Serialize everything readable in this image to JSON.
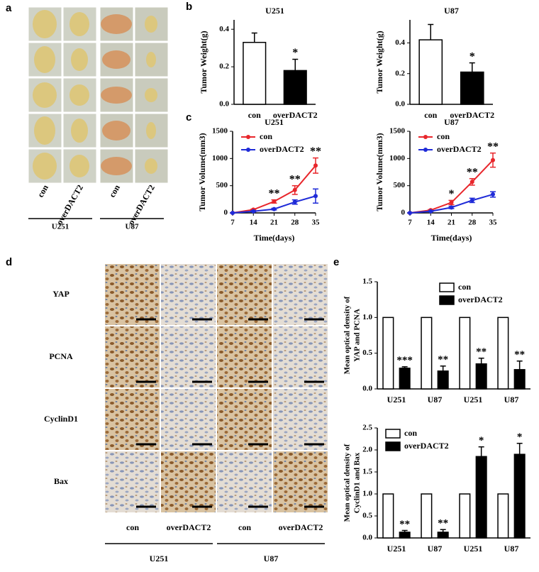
{
  "panel_labels": [
    "a",
    "b",
    "c",
    "d",
    "e"
  ],
  "tumor_photos": {
    "column_labels": [
      "con",
      "overDACT2",
      "con",
      "overDACT2"
    ],
    "group_labels": [
      "U251",
      "U87"
    ]
  },
  "ihc": {
    "row_labels": [
      "YAP",
      "PCNA",
      "CyclinD1",
      "Bax"
    ],
    "column_labels": [
      "con",
      "overDACT2",
      "con",
      "overDACT2"
    ],
    "group_labels": [
      "U251",
      "U87"
    ]
  },
  "chart_data": [
    {
      "type": "bar",
      "title": "U251",
      "ylabel": "Tumor Weight(g)",
      "categories": [
        "con",
        "overDACT2"
      ],
      "values": [
        0.33,
        0.18
      ],
      "errors": [
        0.05,
        0.06
      ],
      "colors": [
        "#ffffff",
        "#000000"
      ],
      "significance": [
        null,
        "*"
      ],
      "ylim": [
        0,
        0.45
      ],
      "yticks": [
        {
          "value": 0,
          "label": "0.0"
        },
        0.2,
        0.4
      ]
    },
    {
      "type": "bar",
      "title": "U87",
      "ylabel": "Tumor Weight(g)",
      "categories": [
        "con",
        "overDACT2"
      ],
      "values": [
        0.42,
        0.21
      ],
      "errors": [
        0.1,
        0.06
      ],
      "colors": [
        "#ffffff",
        "#000000"
      ],
      "significance": [
        null,
        "*"
      ],
      "ylim": [
        0,
        0.55
      ],
      "yticks": [
        {
          "value": 0,
          "label": "0.0"
        },
        0.2,
        0.4
      ]
    },
    {
      "type": "line",
      "title": "U251",
      "ylabel": "Tumor Volume(mm3)",
      "xlabel": "Time(days)",
      "x": [
        7,
        14,
        21,
        28,
        35
      ],
      "xlim": [
        7,
        35
      ],
      "xticks": [
        7,
        14,
        21,
        28,
        35
      ],
      "ylim": [
        0,
        1500
      ],
      "yticks": [
        0,
        500,
        1000,
        1500
      ],
      "legend": "upper left",
      "series": [
        {
          "name": "con",
          "color": "#e8262b",
          "values": [
            0,
            60,
            210,
            420,
            870
          ],
          "errors": [
            0,
            10,
            30,
            80,
            140
          ]
        },
        {
          "name": "overDACT2",
          "color": "#1f2bd8",
          "values": [
            0,
            30,
            70,
            200,
            310
          ],
          "errors": [
            0,
            10,
            15,
            40,
            130
          ]
        }
      ],
      "significance": [
        null,
        null,
        "**",
        "**",
        "**"
      ]
    },
    {
      "type": "line",
      "title": "U87",
      "ylabel": "Tumor Volume(mm3)",
      "xlabel": "Time(days)",
      "x": [
        7,
        14,
        21,
        28,
        35
      ],
      "xlim": [
        7,
        35
      ],
      "xticks": [
        7,
        14,
        21,
        28,
        35
      ],
      "ylim": [
        0,
        1500
      ],
      "yticks": [
        0,
        500,
        1000,
        1500
      ],
      "legend": "upper left",
      "series": [
        {
          "name": "con",
          "color": "#e8262b",
          "values": [
            0,
            50,
            190,
            570,
            970
          ],
          "errors": [
            0,
            10,
            40,
            60,
            130
          ]
        },
        {
          "name": "overDACT2",
          "color": "#1f2bd8",
          "values": [
            0,
            30,
            100,
            230,
            340
          ],
          "errors": [
            0,
            5,
            20,
            40,
            50
          ]
        }
      ],
      "significance": [
        null,
        null,
        "*",
        "**",
        "**"
      ]
    },
    {
      "type": "grouped_bar",
      "ylabel": [
        "Mean optical density of",
        "YAP  and  PCNA"
      ],
      "categories": [
        "U251",
        "U87",
        "U251",
        "U87"
      ],
      "ylim": [
        0,
        1.5
      ],
      "yticks": [
        {
          "value": 0,
          "label": "0.0"
        },
        0.5,
        {
          "value": 1,
          "label": "1.0"
        },
        1.5
      ],
      "legend": "upper right",
      "series": [
        {
          "name": "con",
          "color": "#ffffff",
          "values": [
            1,
            1,
            1,
            1
          ]
        },
        {
          "name": "overDACT2",
          "color": "#000000",
          "values": [
            0.29,
            0.25,
            0.35,
            0.27
          ],
          "errors": [
            0.02,
            0.07,
            0.08,
            0.12
          ],
          "significance": [
            "***",
            "**",
            "**",
            "**"
          ]
        }
      ]
    },
    {
      "type": "grouped_bar",
      "ylabel": [
        "Mean optical density of",
        "CyclinD1  and  Bax"
      ],
      "categories": [
        "U251",
        "U87",
        "U251",
        "U87"
      ],
      "ylim": [
        0,
        2.5
      ],
      "yticks": [
        {
          "value": 0,
          "label": "0.0"
        },
        0.5,
        {
          "value": 1,
          "label": "1.0"
        },
        1.5,
        {
          "value": 2,
          "label": "2.0"
        },
        2.5
      ],
      "legend": "upper left",
      "series": [
        {
          "name": "con",
          "color": "#ffffff",
          "values": [
            1,
            1,
            1,
            1
          ]
        },
        {
          "name": "overDACT2",
          "color": "#000000",
          "values": [
            0.13,
            0.13,
            1.85,
            1.9
          ],
          "errors": [
            0.04,
            0.06,
            0.22,
            0.25
          ],
          "significance": [
            "**",
            "**",
            "*",
            "*"
          ]
        }
      ]
    }
  ]
}
